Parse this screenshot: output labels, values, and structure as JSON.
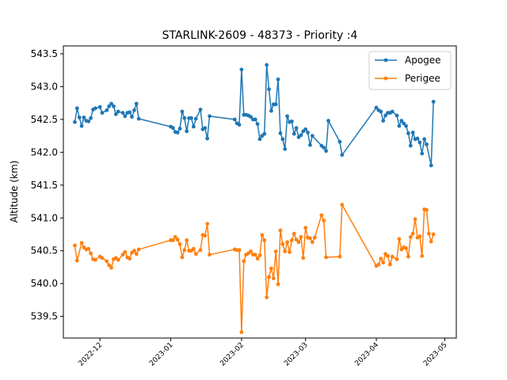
{
  "chart_data": {
    "type": "line",
    "title": "STARLINK-2609 - 48373 - Priority :4",
    "xlabel": "",
    "ylabel": "Altitude (km)",
    "xlim": [
      "2022-11-15",
      "2023-05-06"
    ],
    "ylim": [
      539.17,
      543.62
    ],
    "grid": false,
    "legend_position": "top-right",
    "x_ticks": [
      "2022-12",
      "2023-01",
      "2023-02",
      "2023-03",
      "2023-04",
      "2023-05"
    ],
    "y_ticks": [
      "539.5",
      "540.0",
      "540.5",
      "541.0",
      "541.5",
      "542.0",
      "542.5",
      "543.0",
      "543.5"
    ],
    "series": [
      {
        "name": "Apogee",
        "color": "#1f77b4",
        "points": [
          [
            "2022-11-20",
            542.46
          ],
          [
            "2022-11-21",
            542.67
          ],
          [
            "2022-11-22",
            542.53
          ],
          [
            "2022-11-23",
            542.4
          ],
          [
            "2022-11-24",
            542.53
          ],
          [
            "2022-11-25",
            542.48
          ],
          [
            "2022-11-26",
            542.47
          ],
          [
            "2022-11-27",
            542.52
          ],
          [
            "2022-11-28",
            542.65
          ],
          [
            "2022-11-29",
            542.67
          ],
          [
            "2022-12-01",
            542.69
          ],
          [
            "2022-12-02",
            542.6
          ],
          [
            "2022-12-04",
            542.64
          ],
          [
            "2022-12-05",
            542.7
          ],
          [
            "2022-12-06",
            542.74
          ],
          [
            "2022-12-07",
            542.7
          ],
          [
            "2022-12-08",
            542.58
          ],
          [
            "2022-12-09",
            542.62
          ],
          [
            "2022-12-11",
            542.6
          ],
          [
            "2022-12-12",
            542.55
          ],
          [
            "2022-12-13",
            542.6
          ],
          [
            "2022-12-14",
            542.61
          ],
          [
            "2022-12-15",
            542.54
          ],
          [
            "2022-12-16",
            542.64
          ],
          [
            "2022-12-17",
            542.74
          ],
          [
            "2022-12-18",
            542.51
          ],
          [
            "2023-01-01",
            542.39
          ],
          [
            "2023-01-02",
            542.37
          ],
          [
            "2023-01-03",
            542.31
          ],
          [
            "2023-01-04",
            542.3
          ],
          [
            "2023-01-05",
            542.36
          ],
          [
            "2023-01-06",
            542.62
          ],
          [
            "2023-01-07",
            542.52
          ],
          [
            "2023-01-08",
            542.32
          ],
          [
            "2023-01-09",
            542.52
          ],
          [
            "2023-01-10",
            542.52
          ],
          [
            "2023-01-11",
            542.39
          ],
          [
            "2023-01-12",
            542.51
          ],
          [
            "2023-01-14",
            542.65
          ],
          [
            "2023-01-15",
            542.35
          ],
          [
            "2023-01-16",
            542.37
          ],
          [
            "2023-01-17",
            542.21
          ],
          [
            "2023-01-18",
            542.55
          ],
          [
            "2023-01-29",
            542.5
          ],
          [
            "2023-01-30",
            542.44
          ],
          [
            "2023-01-31",
            542.42
          ],
          [
            "2023-02-01",
            543.26
          ],
          [
            "2023-02-02",
            542.57
          ],
          [
            "2023-02-03",
            542.57
          ],
          [
            "2023-02-04",
            542.56
          ],
          [
            "2023-02-05",
            542.54
          ],
          [
            "2023-02-06",
            542.5
          ],
          [
            "2023-02-07",
            542.5
          ],
          [
            "2023-02-08",
            542.43
          ],
          [
            "2023-02-09",
            542.2
          ],
          [
            "2023-02-10",
            542.25
          ],
          [
            "2023-02-11",
            542.28
          ],
          [
            "2023-02-12",
            543.33
          ],
          [
            "2023-02-13",
            542.96
          ],
          [
            "2023-02-14",
            542.63
          ],
          [
            "2023-02-15",
            542.73
          ],
          [
            "2023-02-16",
            542.73
          ],
          [
            "2023-02-17",
            543.11
          ],
          [
            "2023-02-18",
            542.29
          ],
          [
            "2023-02-19",
            542.2
          ],
          [
            "2023-02-20",
            542.05
          ],
          [
            "2023-02-21",
            542.55
          ],
          [
            "2023-02-22",
            542.46
          ],
          [
            "2023-02-23",
            542.47
          ],
          [
            "2023-02-24",
            542.28
          ],
          [
            "2023-02-25",
            542.37
          ],
          [
            "2023-02-26",
            542.23
          ],
          [
            "2023-02-27",
            542.26
          ],
          [
            "2023-02-28",
            542.32
          ],
          [
            "2023-03-01",
            542.35
          ],
          [
            "2023-03-02",
            542.3
          ],
          [
            "2023-03-03",
            542.11
          ],
          [
            "2023-03-04",
            542.25
          ],
          [
            "2023-03-08",
            542.1
          ],
          [
            "2023-03-09",
            542.07
          ],
          [
            "2023-03-10",
            542.02
          ],
          [
            "2023-03-11",
            542.48
          ],
          [
            "2023-03-16",
            542.16
          ],
          [
            "2023-03-17",
            541.96
          ],
          [
            "2023-04-01",
            542.68
          ],
          [
            "2023-04-02",
            542.64
          ],
          [
            "2023-04-03",
            542.62
          ],
          [
            "2023-04-04",
            542.48
          ],
          [
            "2023-04-05",
            542.56
          ],
          [
            "2023-04-06",
            542.6
          ],
          [
            "2023-04-07",
            542.6
          ],
          [
            "2023-04-08",
            542.62
          ],
          [
            "2023-04-10",
            542.56
          ],
          [
            "2023-04-11",
            542.4
          ],
          [
            "2023-04-12",
            542.48
          ],
          [
            "2023-04-13",
            542.44
          ],
          [
            "2023-04-14",
            542.4
          ],
          [
            "2023-04-15",
            542.29
          ],
          [
            "2023-04-16",
            542.1
          ],
          [
            "2023-04-17",
            542.3
          ],
          [
            "2023-04-18",
            542.2
          ],
          [
            "2023-04-19",
            542.21
          ],
          [
            "2023-04-20",
            542.15
          ],
          [
            "2023-04-21",
            541.98
          ],
          [
            "2023-04-22",
            542.2
          ],
          [
            "2023-04-23",
            542.12
          ],
          [
            "2023-04-25",
            541.8
          ],
          [
            "2023-04-26",
            542.77
          ]
        ]
      },
      {
        "name": "Perigee",
        "color": "#ff7f0e",
        "points": [
          [
            "2022-11-20",
            540.58
          ],
          [
            "2022-11-21",
            540.35
          ],
          [
            "2022-11-23",
            540.62
          ],
          [
            "2022-11-24",
            540.55
          ],
          [
            "2022-11-25",
            540.52
          ],
          [
            "2022-11-26",
            540.53
          ],
          [
            "2022-11-27",
            540.46
          ],
          [
            "2022-11-28",
            540.37
          ],
          [
            "2022-11-29",
            540.36
          ],
          [
            "2022-12-01",
            540.41
          ],
          [
            "2022-12-02",
            540.39
          ],
          [
            "2022-12-04",
            540.34
          ],
          [
            "2022-12-05",
            540.28
          ],
          [
            "2022-12-06",
            540.24
          ],
          [
            "2022-12-07",
            540.37
          ],
          [
            "2022-12-08",
            540.39
          ],
          [
            "2022-12-09",
            540.36
          ],
          [
            "2022-12-11",
            540.44
          ],
          [
            "2022-12-12",
            540.48
          ],
          [
            "2022-12-13",
            540.4
          ],
          [
            "2022-12-14",
            540.38
          ],
          [
            "2022-12-15",
            540.47
          ],
          [
            "2022-12-16",
            540.5
          ],
          [
            "2022-12-17",
            540.45
          ],
          [
            "2022-12-18",
            540.52
          ],
          [
            "2023-01-01",
            540.66
          ],
          [
            "2023-01-02",
            540.66
          ],
          [
            "2023-01-03",
            540.71
          ],
          [
            "2023-01-04",
            540.67
          ],
          [
            "2023-01-05",
            540.6
          ],
          [
            "2023-01-06",
            540.4
          ],
          [
            "2023-01-07",
            540.51
          ],
          [
            "2023-01-08",
            540.66
          ],
          [
            "2023-01-09",
            540.5
          ],
          [
            "2023-01-10",
            540.5
          ],
          [
            "2023-01-11",
            540.53
          ],
          [
            "2023-01-12",
            540.45
          ],
          [
            "2023-01-14",
            540.51
          ],
          [
            "2023-01-15",
            540.74
          ],
          [
            "2023-01-16",
            540.73
          ],
          [
            "2023-01-17",
            540.91
          ],
          [
            "2023-01-18",
            540.44
          ],
          [
            "2023-01-29",
            540.52
          ],
          [
            "2023-01-30",
            540.51
          ],
          [
            "2023-01-31",
            540.51
          ],
          [
            "2023-02-01",
            539.26
          ],
          [
            "2023-02-02",
            540.34
          ],
          [
            "2023-02-03",
            540.44
          ],
          [
            "2023-02-04",
            540.46
          ],
          [
            "2023-02-05",
            540.49
          ],
          [
            "2023-02-06",
            540.44
          ],
          [
            "2023-02-07",
            540.44
          ],
          [
            "2023-02-08",
            540.38
          ],
          [
            "2023-02-09",
            540.43
          ],
          [
            "2023-02-10",
            540.74
          ],
          [
            "2023-02-11",
            540.66
          ],
          [
            "2023-02-12",
            539.79
          ],
          [
            "2023-02-13",
            540.1
          ],
          [
            "2023-02-14",
            540.23
          ],
          [
            "2023-02-15",
            540.08
          ],
          [
            "2023-02-16",
            540.49
          ],
          [
            "2023-02-17",
            539.99
          ],
          [
            "2023-02-18",
            540.81
          ],
          [
            "2023-02-19",
            540.6
          ],
          [
            "2023-02-20",
            540.49
          ],
          [
            "2023-02-21",
            540.63
          ],
          [
            "2023-02-22",
            540.48
          ],
          [
            "2023-02-23",
            540.66
          ],
          [
            "2023-02-24",
            540.76
          ],
          [
            "2023-02-25",
            540.67
          ],
          [
            "2023-02-26",
            540.63
          ],
          [
            "2023-02-27",
            540.71
          ],
          [
            "2023-02-28",
            540.39
          ],
          [
            "2023-03-01",
            540.85
          ],
          [
            "2023-03-02",
            540.7
          ],
          [
            "2023-03-03",
            540.69
          ],
          [
            "2023-03-04",
            540.63
          ],
          [
            "2023-03-05",
            540.7
          ],
          [
            "2023-03-08",
            541.04
          ],
          [
            "2023-03-09",
            540.96
          ],
          [
            "2023-03-10",
            540.4
          ],
          [
            "2023-03-16",
            540.41
          ],
          [
            "2023-03-17",
            541.2
          ],
          [
            "2023-04-01",
            540.27
          ],
          [
            "2023-04-02",
            540.29
          ],
          [
            "2023-04-03",
            540.38
          ],
          [
            "2023-04-04",
            540.32
          ],
          [
            "2023-04-05",
            540.45
          ],
          [
            "2023-04-06",
            540.42
          ],
          [
            "2023-04-07",
            540.29
          ],
          [
            "2023-04-08",
            540.41
          ],
          [
            "2023-04-10",
            540.37
          ],
          [
            "2023-04-11",
            540.68
          ],
          [
            "2023-04-12",
            540.52
          ],
          [
            "2023-04-13",
            540.55
          ],
          [
            "2023-04-14",
            540.54
          ],
          [
            "2023-04-15",
            540.41
          ],
          [
            "2023-04-16",
            540.71
          ],
          [
            "2023-04-17",
            540.76
          ],
          [
            "2023-04-18",
            540.98
          ],
          [
            "2023-04-19",
            540.7
          ],
          [
            "2023-04-20",
            540.72
          ],
          [
            "2023-04-21",
            540.42
          ],
          [
            "2023-04-22",
            541.13
          ],
          [
            "2023-04-23",
            541.12
          ],
          [
            "2023-04-24",
            540.76
          ],
          [
            "2023-04-25",
            540.64
          ],
          [
            "2023-04-26",
            540.75
          ]
        ]
      }
    ]
  }
}
